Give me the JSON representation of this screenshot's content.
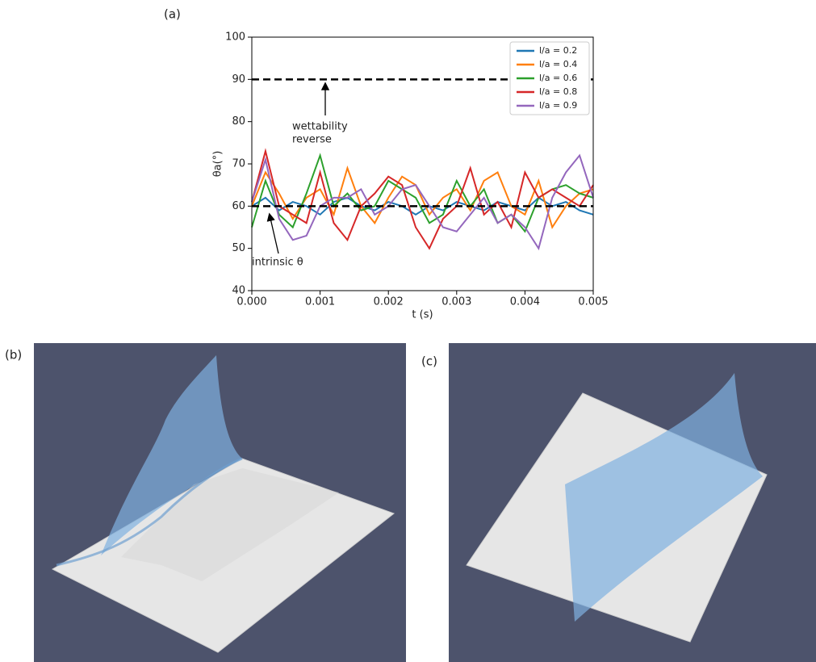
{
  "panels": {
    "a": "(a)",
    "b": "(b)",
    "c": "(c)"
  },
  "chart_data": {
    "type": "line",
    "x_label": "t (s)",
    "y_label": "θa(°)",
    "x": [
      0,
      0.0002,
      0.0004,
      0.0006,
      0.0008,
      0.001,
      0.0012,
      0.0014,
      0.0016,
      0.0018,
      0.002,
      0.0022,
      0.0024,
      0.0026,
      0.0028,
      0.003,
      0.0032,
      0.0034,
      0.0036,
      0.0038,
      0.004,
      0.0042,
      0.0044,
      0.0046,
      0.0048,
      0.005
    ],
    "series": [
      {
        "name": "l/a = 0.2",
        "color": "#1f77b4",
        "values": [
          60,
          62,
          59,
          61,
          60,
          58,
          61,
          62,
          60,
          59,
          61,
          60,
          58,
          60,
          59,
          61,
          60,
          59,
          61,
          60,
          59,
          62,
          60,
          61,
          59,
          58
        ]
      },
      {
        "name": "l/a = 0.4",
        "color": "#ff7f0e",
        "values": [
          60,
          68,
          63,
          57,
          62,
          64,
          58,
          69,
          60,
          56,
          62,
          67,
          65,
          58,
          62,
          64,
          59,
          66,
          68,
          60,
          58,
          66,
          55,
          60,
          63,
          64
        ]
      },
      {
        "name": "l/a = 0.6",
        "color": "#2ca02c",
        "values": [
          55,
          66,
          58,
          55,
          63,
          72,
          60,
          63,
          59,
          60,
          66,
          64,
          62,
          56,
          58,
          66,
          60,
          64,
          56,
          58,
          54,
          62,
          64,
          65,
          63,
          62
        ]
      },
      {
        "name": "l/a = 0.8",
        "color": "#d62728",
        "values": [
          61,
          73,
          60,
          58,
          56,
          68,
          56,
          52,
          60,
          63,
          67,
          65,
          55,
          50,
          57,
          60,
          69,
          58,
          61,
          55,
          68,
          62,
          64,
          62,
          60,
          65
        ]
      },
      {
        "name": "l/a = 0.9",
        "color": "#9467bd",
        "values": [
          61,
          71,
          57,
          52,
          53,
          60,
          62,
          62,
          64,
          58,
          60,
          64,
          65,
          60,
          55,
          54,
          58,
          62,
          56,
          58,
          55,
          50,
          62,
          68,
          72,
          62
        ]
      }
    ],
    "reference_lines": [
      90,
      60
    ],
    "annotations": [
      {
        "lines": [
          "wettability",
          "reverse"
        ]
      },
      {
        "lines": [
          "intrinsic θ"
        ]
      }
    ],
    "xlim": [
      0,
      0.005
    ],
    "xticks": [
      {
        "value": 0,
        "label": "0.000"
      },
      {
        "value": 0.001,
        "label": "0.001"
      },
      {
        "value": 0.002,
        "label": "0.002"
      },
      {
        "value": 0.003,
        "label": "0.003"
      },
      {
        "value": 0.004,
        "label": "0.004"
      },
      {
        "value": 0.005,
        "label": "0.005"
      }
    ],
    "ylim": [
      40,
      100
    ],
    "yticks": [
      40,
      50,
      60,
      70,
      80,
      90,
      100
    ],
    "legend": "upper right"
  }
}
